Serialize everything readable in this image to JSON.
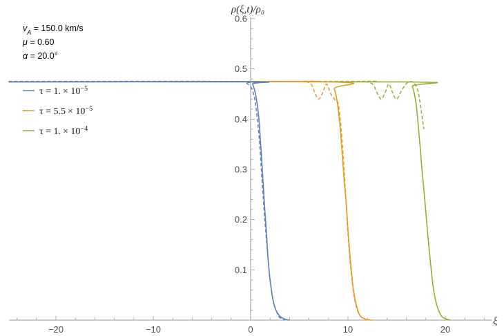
{
  "chart_data": {
    "type": "line",
    "xlabel": "ξ",
    "ylabel": "ρ(ξ,t)/ρ₀",
    "xlim": [
      -25,
      25
    ],
    "ylim": [
      0,
      0.6
    ],
    "xticks": [
      -20,
      -10,
      0,
      10,
      20
    ],
    "xtick_labels": [
      "−20",
      "−10",
      "0",
      "10",
      "20"
    ],
    "yticks": [
      0.1,
      0.2,
      0.3,
      0.4,
      0.5,
      0.6
    ],
    "ytick_labels": [
      "0.1",
      "0.2",
      "0.3",
      "0.4",
      "0.5",
      "0.6"
    ],
    "grid": false,
    "legend_position": "upper-left",
    "parameters": [
      {
        "symbol": "v",
        "sub": "A",
        "value": " = 150.0 km/s"
      },
      {
        "symbol": "μ",
        "sub": "",
        "value": " = 0.60"
      },
      {
        "symbol": "α",
        "sub": "",
        "value": " = 20.0°"
      }
    ],
    "series": [
      {
        "legend_prefix": "τ = ",
        "legend_mantissa": "1.",
        "legend_exp": "−5",
        "color": "#5e81b5",
        "plateau": 0.475,
        "solid": {
          "x_half": 1.4,
          "width": 0.35,
          "x": [
            0,
            0.2,
            0.5,
            0.8,
            1.0,
            1.2,
            1.4,
            1.6,
            1.8,
            2.0,
            2.3,
            2.6,
            3.0,
            3.5,
            4.0
          ],
          "y": [
            0.474,
            0.47,
            0.45,
            0.41,
            0.36,
            0.3,
            0.237,
            0.18,
            0.12,
            0.08,
            0.04,
            0.02,
            0.008,
            0.002,
            0.0
          ]
        },
        "dashed": {
          "x": [
            -1,
            -0.5,
            0,
            0.3,
            0.5,
            0.8,
            1.0,
            1.2,
            1.5,
            1.8,
            2.0,
            2.3,
            2.7,
            3.0,
            3.5
          ],
          "y": [
            0.475,
            0.472,
            0.465,
            0.45,
            0.43,
            0.38,
            0.33,
            0.27,
            0.19,
            0.12,
            0.08,
            0.04,
            0.015,
            0.005,
            0.0
          ]
        }
      },
      {
        "legend_prefix": "τ = ",
        "legend_mantissa": "5.5",
        "legend_exp": "−5",
        "color": "#e19c24",
        "plateau": 0.475,
        "solid": {
          "x_half": 9.8,
          "width": 0.35,
          "x": [
            8.0,
            8.6,
            9.0,
            9.3,
            9.6,
            9.8,
            10.0,
            10.2,
            10.5,
            10.8,
            11.2,
            11.8,
            12.5
          ],
          "y": [
            0.474,
            0.46,
            0.42,
            0.36,
            0.28,
            0.237,
            0.18,
            0.13,
            0.07,
            0.035,
            0.01,
            0.002,
            0.0
          ]
        },
        "dashed": {
          "x": [
            4.5,
            5.5,
            6.2,
            6.6,
            7.0,
            7.4,
            7.8,
            8.2,
            8.6,
            9.0,
            9.3,
            9.6,
            9.8,
            10.0,
            10.3,
            10.7,
            11.2,
            12.0
          ],
          "y": [
            0.475,
            0.475,
            0.47,
            0.452,
            0.44,
            0.452,
            0.47,
            0.452,
            0.44,
            0.43,
            0.38,
            0.3,
            0.237,
            0.17,
            0.1,
            0.04,
            0.01,
            0.0
          ]
        }
      },
      {
        "legend_prefix": "τ = ",
        "legend_mantissa": "1.",
        "legend_exp": "−4",
        "color": "#8fb032",
        "plateau": 0.475,
        "solid": {
          "x_half": 17.9,
          "width": 0.35,
          "x": [
            16.0,
            16.6,
            17.0,
            17.3,
            17.6,
            17.9,
            18.2,
            18.5,
            18.8,
            19.2,
            19.7,
            20.5
          ],
          "y": [
            0.474,
            0.465,
            0.43,
            0.37,
            0.3,
            0.237,
            0.17,
            0.11,
            0.06,
            0.025,
            0.006,
            0.0
          ]
        },
        "dashed": {
          "x": [
            10.0,
            11.5,
            12.5,
            13.0,
            13.4,
            13.8,
            14.2,
            14.6,
            15.0,
            15.6,
            16.2,
            16.8,
            17.2,
            17.5,
            17.8
          ],
          "y": [
            0.475,
            0.475,
            0.47,
            0.452,
            0.44,
            0.452,
            0.47,
            0.452,
            0.44,
            0.46,
            0.474,
            0.472,
            0.455,
            0.42,
            0.38
          ]
        }
      }
    ]
  }
}
